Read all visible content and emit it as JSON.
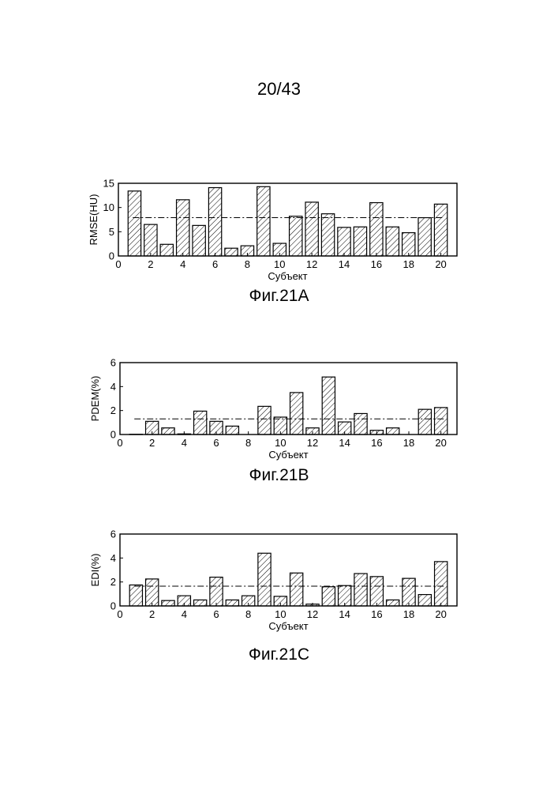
{
  "page": {
    "number": "20/43"
  },
  "chart_data": [
    {
      "type": "bar",
      "caption": "Фиг.21A",
      "xlabel": "Субъект",
      "ylabel": "RMSE(HU)",
      "xlim": [
        0,
        21
      ],
      "ylim": [
        0,
        15
      ],
      "x_ticks": [
        0,
        2,
        4,
        6,
        8,
        10,
        12,
        14,
        16,
        18,
        20
      ],
      "y_ticks": [
        0,
        5,
        10,
        15
      ],
      "categories": [
        1,
        2,
        3,
        4,
        5,
        6,
        7,
        8,
        9,
        10,
        11,
        12,
        13,
        14,
        15,
        16,
        17,
        18,
        19,
        20
      ],
      "values": [
        13.4,
        6.5,
        2.4,
        11.6,
        6.3,
        14.1,
        1.6,
        2.1,
        14.3,
        2.6,
        8.2,
        11.1,
        8.7,
        5.9,
        6.0,
        11.0,
        6.0,
        4.8,
        7.9,
        10.7
      ],
      "mean_line": 7.9,
      "bar_fill": "diagonal-hatch",
      "grid": false
    },
    {
      "type": "bar",
      "caption": "Фиг.21B",
      "xlabel": "Субъект",
      "ylabel": "PDEM(%)",
      "xlim": [
        0,
        21
      ],
      "ylim": [
        0,
        6
      ],
      "x_ticks": [
        0,
        2,
        4,
        6,
        8,
        10,
        12,
        14,
        16,
        18,
        20
      ],
      "y_ticks": [
        0,
        2,
        4,
        6
      ],
      "categories": [
        1,
        2,
        3,
        4,
        5,
        6,
        7,
        8,
        9,
        10,
        11,
        12,
        13,
        14,
        15,
        16,
        17,
        18,
        19,
        20
      ],
      "values": [
        0.02,
        1.1,
        0.55,
        0.05,
        1.95,
        1.1,
        0.7,
        0.0,
        2.35,
        1.45,
        3.5,
        0.55,
        4.8,
        1.05,
        1.75,
        0.35,
        0.55,
        0.0,
        2.1,
        2.25
      ],
      "mean_line": 1.3,
      "bar_fill": "diagonal-hatch",
      "grid": false
    },
    {
      "type": "bar",
      "caption": "Фиг.21C",
      "xlabel": "Субъект",
      "ylabel": "EDI(%)",
      "xlim": [
        0,
        21
      ],
      "ylim": [
        0,
        6
      ],
      "x_ticks": [
        0,
        2,
        4,
        6,
        8,
        10,
        12,
        14,
        16,
        18,
        20
      ],
      "y_ticks": [
        0,
        2,
        4,
        6
      ],
      "categories": [
        1,
        2,
        3,
        4,
        5,
        6,
        7,
        8,
        9,
        10,
        11,
        12,
        13,
        14,
        15,
        16,
        17,
        18,
        19,
        20
      ],
      "values": [
        1.75,
        2.25,
        0.45,
        0.85,
        0.5,
        2.4,
        0.5,
        0.85,
        4.4,
        0.8,
        2.75,
        0.15,
        1.6,
        1.7,
        2.7,
        2.45,
        0.5,
        2.3,
        0.95,
        3.7
      ],
      "mean_line": 1.65,
      "bar_fill": "diagonal-hatch",
      "grid": false
    }
  ]
}
